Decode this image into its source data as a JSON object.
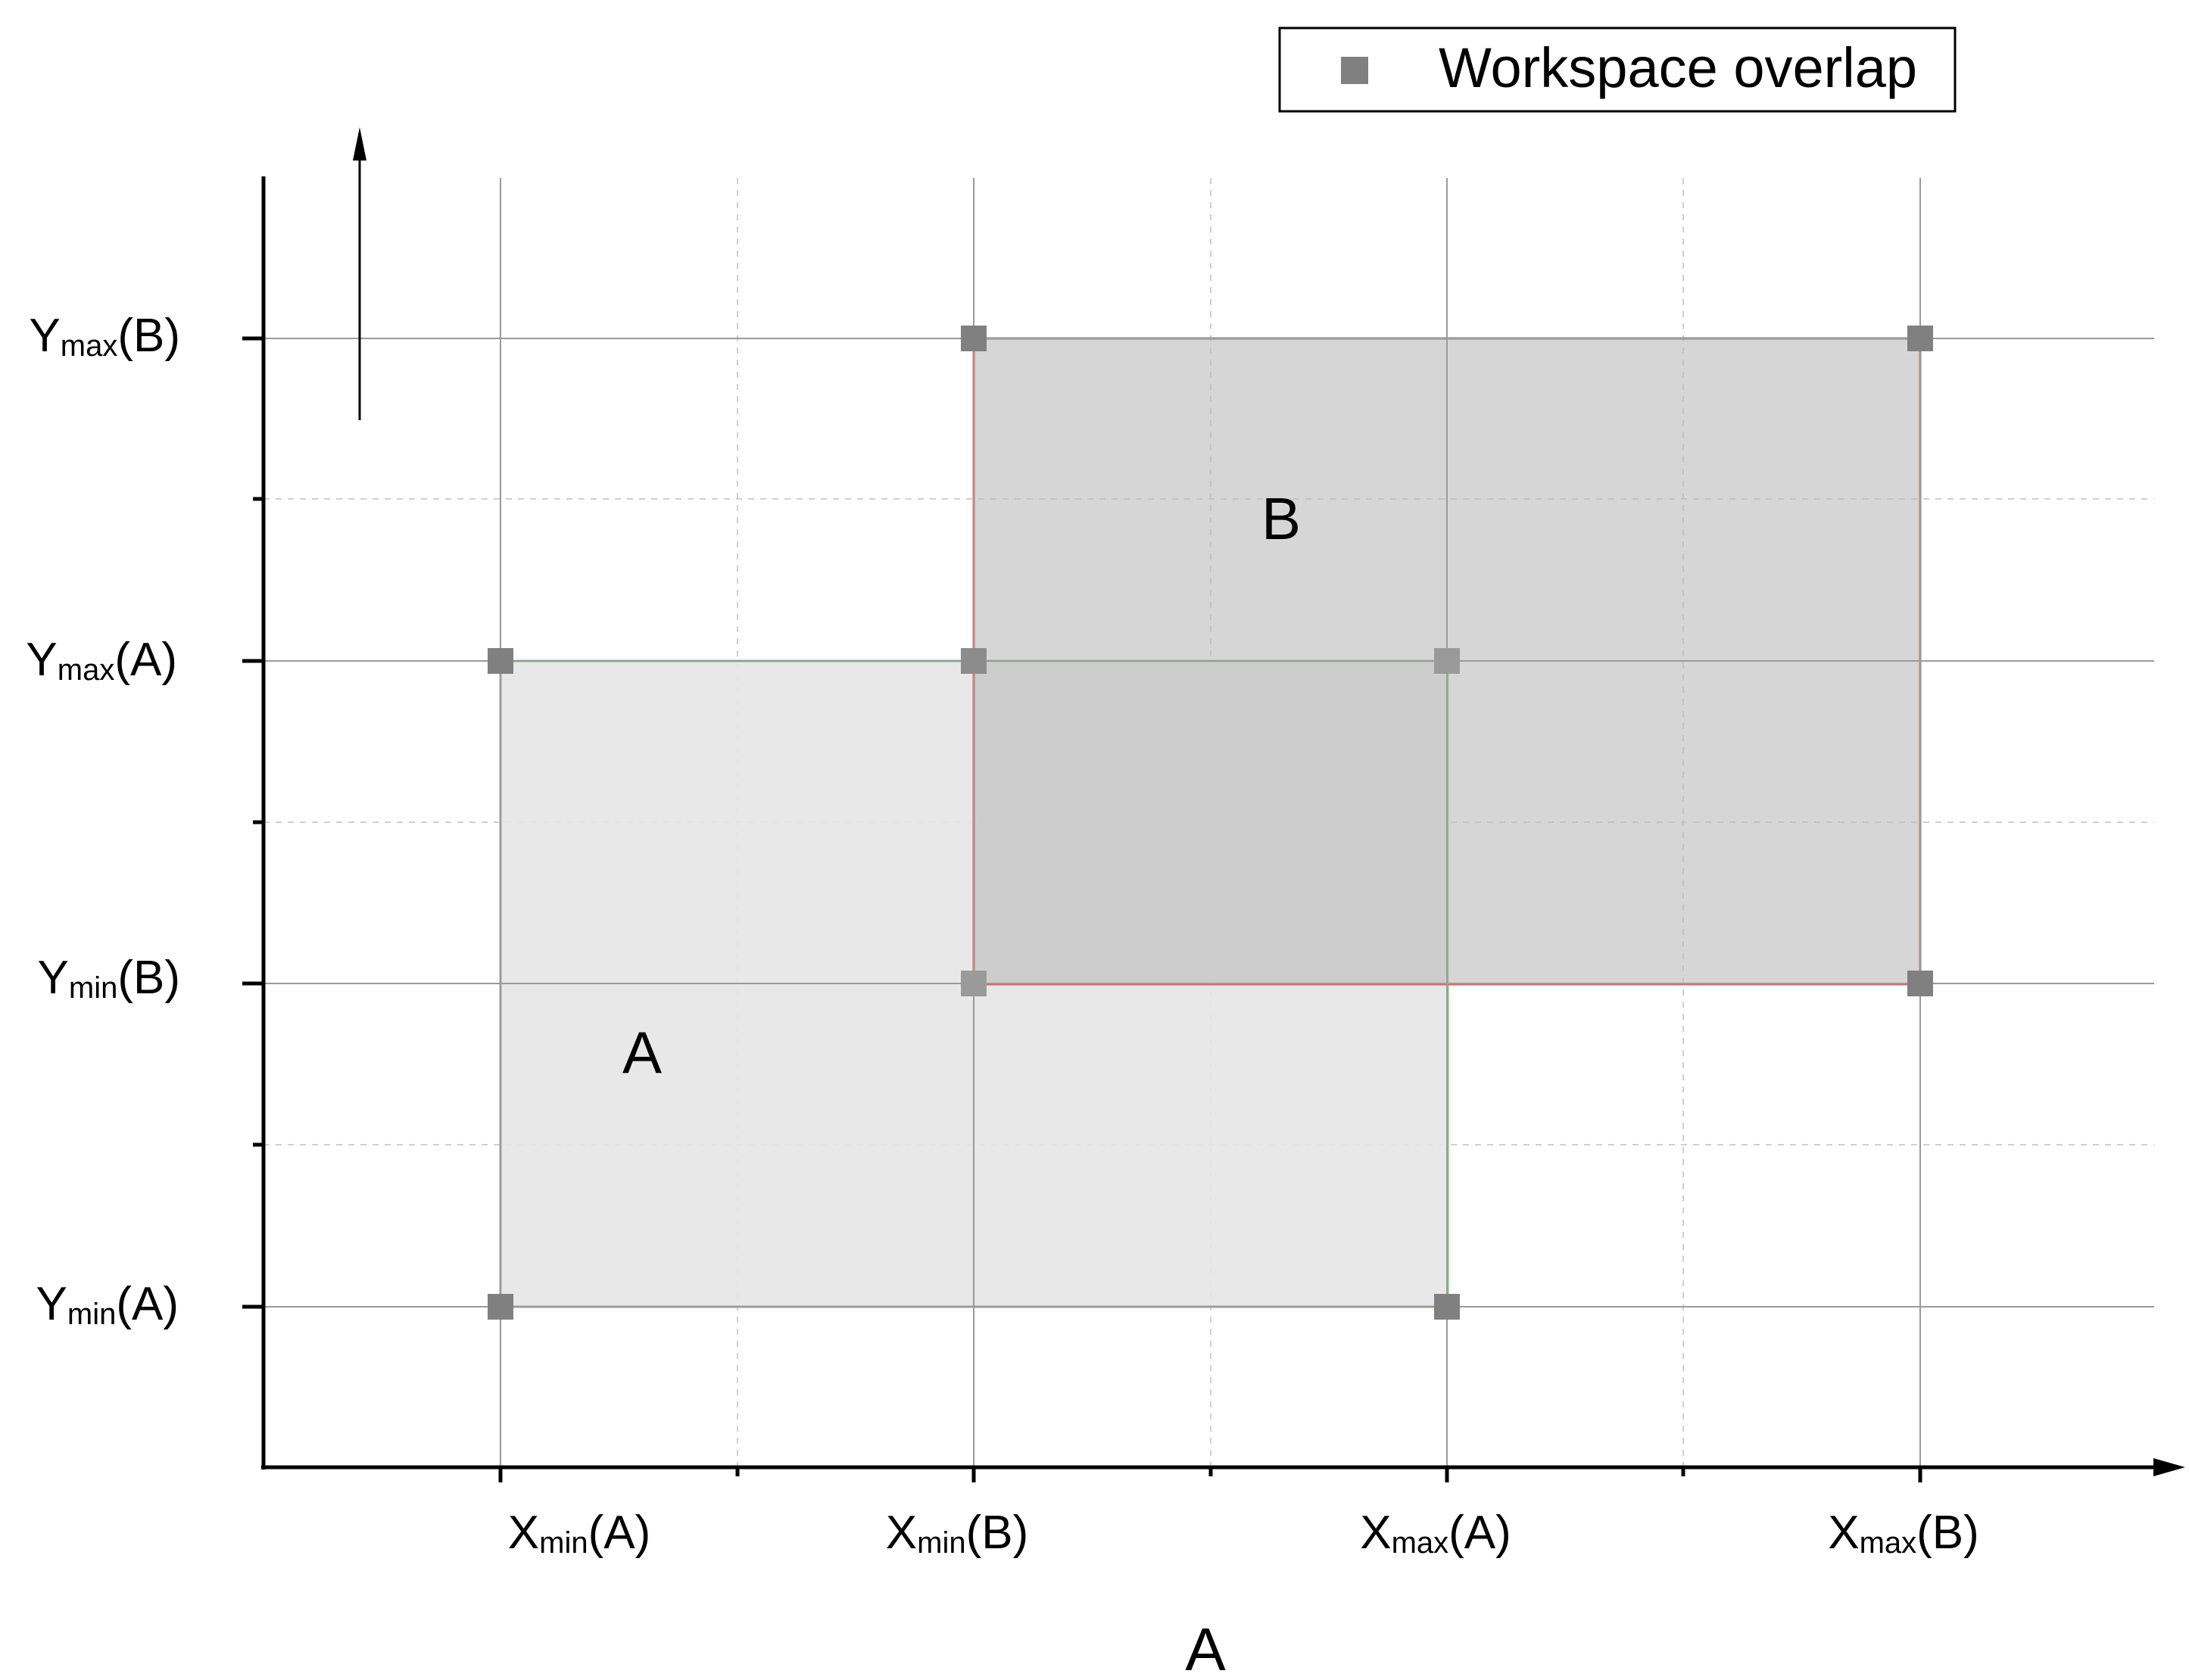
{
  "legend": {
    "label": "Workspace overlap",
    "marker_color": "#808080"
  },
  "x_axis": {
    "label": "A",
    "ticks": [
      {
        "base": "X",
        "sub": "min",
        "arg": "(A)"
      },
      {
        "base": "X",
        "sub": "min",
        "arg": "(B)"
      },
      {
        "base": "X",
        "sub": "max",
        "arg": "(A)"
      },
      {
        "base": "X",
        "sub": "max",
        "arg": "(B)"
      }
    ]
  },
  "y_axis": {
    "ticks": [
      {
        "base": "Y",
        "sub": "min",
        "arg": "(A)"
      },
      {
        "base": "Y",
        "sub": "min",
        "arg": "(B)"
      },
      {
        "base": "Y",
        "sub": "max",
        "arg": "(A)"
      },
      {
        "base": "Y",
        "sub": "max",
        "arg": "(B)"
      }
    ]
  },
  "regions": {
    "A": {
      "label": "A",
      "fill": "#e6e6e6",
      "border": "#7cc47c"
    },
    "B": {
      "label": "B",
      "fill": "#c8c8c8",
      "border": "#e06060"
    }
  },
  "colors": {
    "axis": "#000000",
    "grid_major": "#9a9a9a",
    "grid_minor": "#d0d0d0",
    "marker": "#808080"
  }
}
